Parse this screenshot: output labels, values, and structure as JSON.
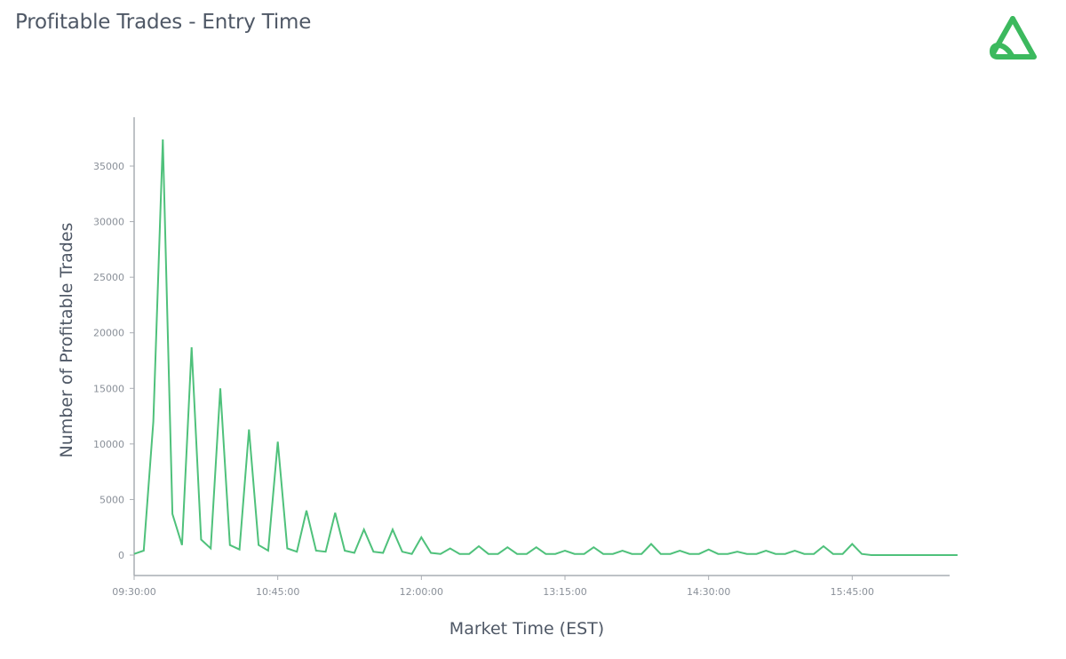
{
  "title": "Profitable Trades - Entry Time",
  "logo_icon": "triangle-loop-logo",
  "colors": {
    "line": "#4fc17b",
    "axis": "#a9adb3",
    "title": "#4f5866",
    "logo": "#3cb95e"
  },
  "chart_data": {
    "type": "line",
    "title": "Profitable Trades - Entry Time",
    "xlabel": "Market Time (EST)",
    "ylabel": "Number of Profitable Trades",
    "x_unit": "minutes since 09:30:00 (5-minute bins)",
    "x_tick_labels": [
      "09:30:00",
      "10:45:00",
      "12:00:00",
      "13:15:00",
      "14:30:00",
      "15:45:00"
    ],
    "x_tick_values": [
      0,
      75,
      150,
      225,
      300,
      375
    ],
    "xlim": [
      0,
      430
    ],
    "ylim": [
      -2000,
      39000
    ],
    "y_ticks": [
      0,
      5000,
      10000,
      15000,
      20000,
      25000,
      30000,
      35000
    ],
    "grid": false,
    "legend": "none",
    "series": [
      {
        "x": [
          0,
          5,
          10,
          15,
          20,
          25,
          30,
          35,
          40,
          45,
          50,
          55,
          60,
          65,
          70,
          75,
          80,
          85,
          90,
          95,
          100,
          105,
          110,
          115,
          120,
          125,
          130,
          135,
          140,
          145,
          150,
          155,
          160,
          165,
          170,
          175,
          180,
          185,
          190,
          195,
          200,
          205,
          210,
          215,
          220,
          225,
          230,
          235,
          240,
          245,
          250,
          255,
          260,
          265,
          270,
          275,
          280,
          285,
          290,
          295,
          300,
          305,
          310,
          315,
          320,
          325,
          330,
          335,
          340,
          345,
          350,
          355,
          360,
          365,
          370,
          375,
          380,
          385,
          390,
          430
        ],
        "values": [
          100,
          400,
          12000,
          37400,
          3700,
          900,
          18700,
          1400,
          600,
          15000,
          900,
          500,
          11300,
          900,
          400,
          10200,
          600,
          300,
          4000,
          400,
          300,
          3800,
          400,
          200,
          2300,
          300,
          200,
          2300,
          300,
          100,
          1600,
          200,
          100,
          600,
          100,
          100,
          800,
          100,
          100,
          700,
          100,
          100,
          700,
          100,
          100,
          400,
          100,
          100,
          700,
          100,
          100,
          400,
          100,
          100,
          1000,
          100,
          100,
          400,
          100,
          100,
          500,
          100,
          100,
          300,
          100,
          100,
          400,
          100,
          100,
          400,
          100,
          100,
          800,
          100,
          100,
          1000,
          100,
          0,
          0,
          0
        ]
      }
    ]
  }
}
